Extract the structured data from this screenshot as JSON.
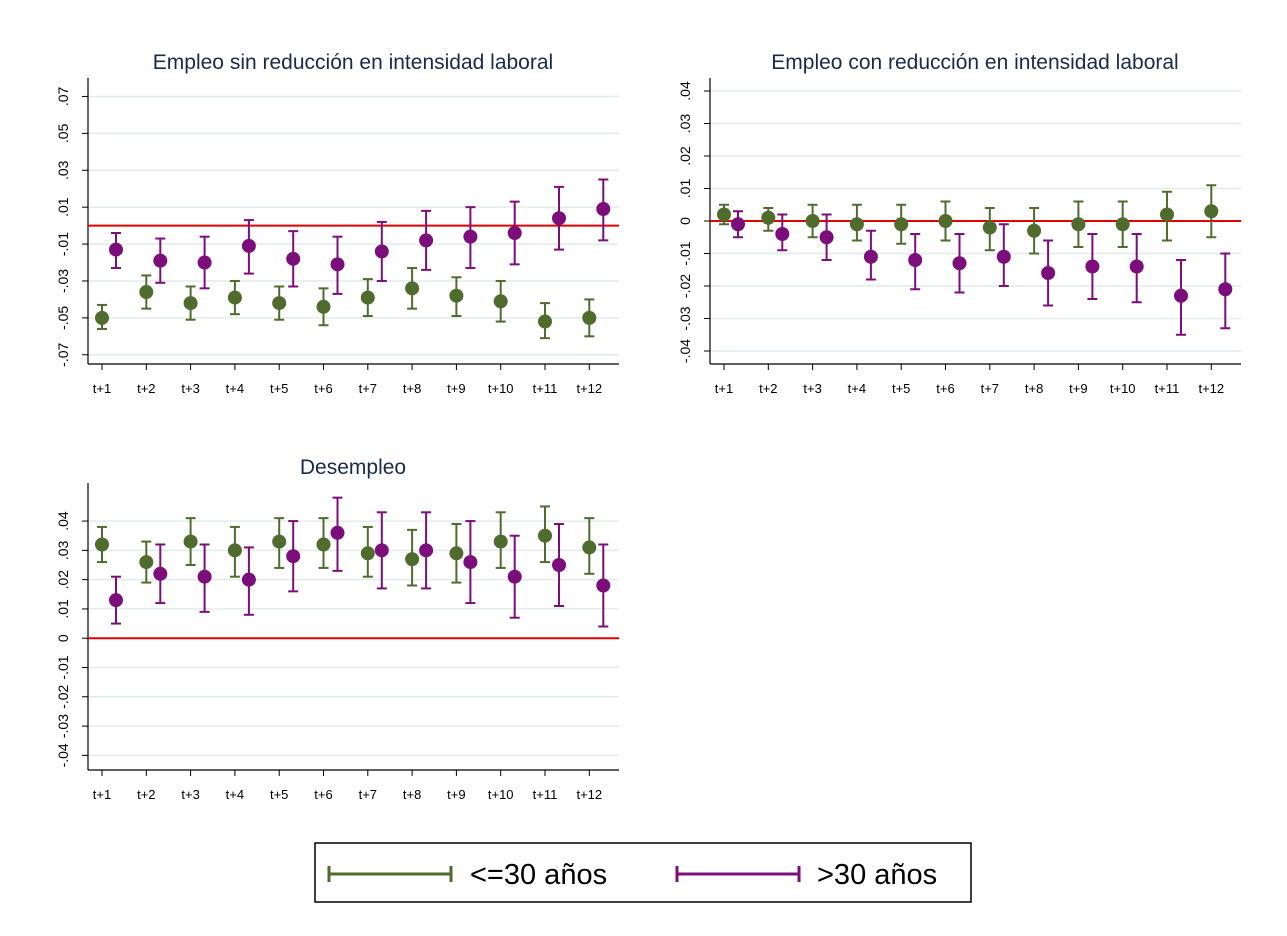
{
  "colors": {
    "young": "#4f6b2d",
    "old": "#7b0e7b",
    "zero_line": "#e00000",
    "grid": "#e2ebeb",
    "axis": "#000000"
  },
  "legend": {
    "young_label": "<=30 años",
    "old_label": ">30 años"
  },
  "chart_data": [
    {
      "type": "scatter",
      "title": "Empleo sin reducción en intensidad laboral",
      "categories": [
        "t+1",
        "t+2",
        "t+3",
        "t+4",
        "t+5",
        "t+6",
        "t+7",
        "t+8",
        "t+9",
        "t+10",
        "t+11",
        "t+12"
      ],
      "ylim": [
        -0.075,
        0.08
      ],
      "yticks": [
        -0.07,
        -0.05,
        -0.03,
        -0.01,
        0.01,
        0.03,
        0.05,
        0.07
      ],
      "ytick_labels": [
        "-.07",
        "-.05",
        "-.03",
        "-.01",
        ".01",
        ".03",
        ".05",
        ".07"
      ],
      "grid": true,
      "reference_line": 0,
      "series": [
        {
          "name": "<=30 años",
          "values": [
            -0.05,
            -0.036,
            -0.042,
            -0.039,
            -0.042,
            -0.044,
            -0.039,
            -0.034,
            -0.038,
            -0.041,
            -0.052,
            -0.05
          ],
          "ci_low": [
            -0.056,
            -0.045,
            -0.051,
            -0.048,
            -0.051,
            -0.054,
            -0.049,
            -0.045,
            -0.049,
            -0.052,
            -0.061,
            -0.06
          ],
          "ci_high": [
            -0.043,
            -0.027,
            -0.033,
            -0.03,
            -0.033,
            -0.034,
            -0.029,
            -0.023,
            -0.028,
            -0.03,
            -0.042,
            -0.04
          ]
        },
        {
          "name": ">30 años",
          "values": [
            -0.013,
            -0.019,
            -0.02,
            -0.011,
            -0.018,
            -0.021,
            -0.014,
            -0.008,
            -0.006,
            -0.004,
            0.004,
            0.009
          ],
          "ci_low": [
            -0.023,
            -0.031,
            -0.034,
            -0.026,
            -0.033,
            -0.037,
            -0.03,
            -0.024,
            -0.023,
            -0.021,
            -0.013,
            -0.008
          ],
          "ci_high": [
            -0.004,
            -0.007,
            -0.006,
            0.003,
            -0.003,
            -0.006,
            0.002,
            0.008,
            0.01,
            0.013,
            0.021,
            0.025
          ]
        }
      ]
    },
    {
      "type": "scatter",
      "title": "Empleo con reducción en intensidad laboral",
      "categories": [
        "t+1",
        "t+2",
        "t+3",
        "t+4",
        "t+5",
        "t+6",
        "t+7",
        "t+8",
        "t+9",
        "t+10",
        "t+11",
        "t+12"
      ],
      "ylim": [
        -0.044,
        0.044
      ],
      "yticks": [
        -0.04,
        -0.03,
        -0.02,
        -0.01,
        0,
        0.01,
        0.02,
        0.03,
        0.04
      ],
      "ytick_labels": [
        "-.04",
        "-.03",
        "-.02",
        "-.01",
        "0",
        ".01",
        ".02",
        ".03",
        ".04"
      ],
      "grid": true,
      "reference_line": 0,
      "series": [
        {
          "name": "<=30 años",
          "values": [
            0.002,
            0.001,
            0.0,
            -0.001,
            -0.001,
            0.0,
            -0.002,
            -0.003,
            -0.001,
            -0.001,
            0.002,
            0.003
          ],
          "ci_low": [
            -0.001,
            -0.003,
            -0.005,
            -0.006,
            -0.007,
            -0.006,
            -0.009,
            -0.01,
            -0.008,
            -0.008,
            -0.006,
            -0.005
          ],
          "ci_high": [
            0.005,
            0.004,
            0.005,
            0.005,
            0.005,
            0.006,
            0.004,
            0.004,
            0.006,
            0.006,
            0.009,
            0.011
          ]
        },
        {
          "name": ">30 años",
          "values": [
            -0.001,
            -0.004,
            -0.005,
            -0.011,
            -0.012,
            -0.013,
            -0.011,
            -0.016,
            -0.014,
            -0.014,
            -0.023,
            -0.021
          ],
          "ci_low": [
            -0.005,
            -0.009,
            -0.012,
            -0.018,
            -0.021,
            -0.022,
            -0.02,
            -0.026,
            -0.024,
            -0.025,
            -0.035,
            -0.033
          ],
          "ci_high": [
            0.003,
            0.002,
            0.002,
            -0.003,
            -0.004,
            -0.004,
            -0.001,
            -0.006,
            -0.004,
            -0.004,
            -0.012,
            -0.01
          ]
        }
      ]
    },
    {
      "type": "scatter",
      "title": "Desempleo",
      "categories": [
        "t+1",
        "t+2",
        "t+3",
        "t+4",
        "t+5",
        "t+6",
        "t+7",
        "t+8",
        "t+9",
        "t+10",
        "t+11",
        "t+12"
      ],
      "ylim": [
        -0.045,
        0.053
      ],
      "yticks": [
        -0.04,
        -0.03,
        -0.02,
        -0.01,
        0,
        0.01,
        0.02,
        0.03,
        0.04
      ],
      "ytick_labels": [
        "-.04",
        "-.03",
        "-.02",
        "-.01",
        "0",
        ".01",
        ".02",
        ".03",
        ".04"
      ],
      "grid": true,
      "reference_line": 0,
      "series": [
        {
          "name": "<=30 años",
          "values": [
            0.032,
            0.026,
            0.033,
            0.03,
            0.033,
            0.032,
            0.029,
            0.027,
            0.029,
            0.033,
            0.035,
            0.031
          ],
          "ci_low": [
            0.026,
            0.019,
            0.025,
            0.021,
            0.024,
            0.024,
            0.021,
            0.018,
            0.019,
            0.024,
            0.026,
            0.022
          ],
          "ci_high": [
            0.038,
            0.033,
            0.041,
            0.038,
            0.041,
            0.041,
            0.038,
            0.037,
            0.039,
            0.043,
            0.045,
            0.041
          ]
        },
        {
          "name": ">30 años",
          "values": [
            0.013,
            0.022,
            0.021,
            0.02,
            0.028,
            0.036,
            0.03,
            0.03,
            0.026,
            0.021,
            0.025,
            0.018
          ],
          "ci_low": [
            0.005,
            0.012,
            0.009,
            0.008,
            0.016,
            0.023,
            0.017,
            0.017,
            0.012,
            0.007,
            0.011,
            0.004
          ],
          "ci_high": [
            0.021,
            0.032,
            0.032,
            0.031,
            0.04,
            0.048,
            0.043,
            0.043,
            0.04,
            0.035,
            0.039,
            0.032
          ]
        }
      ]
    }
  ]
}
